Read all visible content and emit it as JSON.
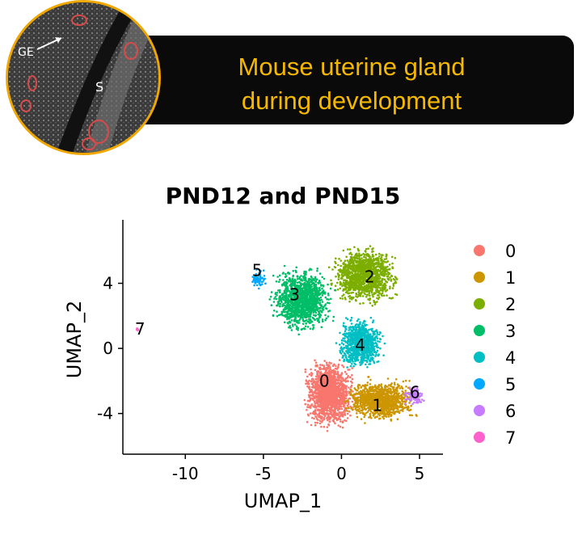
{
  "banner": {
    "title_line1": "Mouse uterine gland",
    "title_line2": "during development",
    "accent_color": "#f5b800"
  },
  "inset": {
    "label_ge": "GE",
    "label_s": "S",
    "border_color": "#f0a800"
  },
  "chart_data": {
    "type": "scatter",
    "title": "PND12 and PND15",
    "xlabel": "UMAP_1",
    "ylabel": "UMAP_2",
    "xlim": [
      -14,
      6.5
    ],
    "ylim": [
      -6.5,
      7.9
    ],
    "xticks": [
      -10,
      -5,
      0,
      5
    ],
    "yticks": [
      -4,
      0,
      4
    ],
    "grid": false,
    "legend_position": "right",
    "series": [
      {
        "name": "0",
        "color": "#f8766d",
        "cx": -0.8,
        "cy": -2.8,
        "rx": 1.8,
        "ry": 2.4,
        "count": 1500
      },
      {
        "name": "1",
        "color": "#cd9600",
        "cx": 2.5,
        "cy": -3.2,
        "rx": 2.6,
        "ry": 1.5,
        "count": 1100
      },
      {
        "name": "2",
        "color": "#7cae00",
        "cx": 1.5,
        "cy": 4.5,
        "rx": 2.5,
        "ry": 2.0,
        "count": 1300
      },
      {
        "name": "3",
        "color": "#00be67",
        "cx": -2.5,
        "cy": 3.0,
        "rx": 2.2,
        "ry": 2.3,
        "count": 1300
      },
      {
        "name": "4",
        "color": "#00bfc4",
        "cx": 1.2,
        "cy": 0.3,
        "rx": 1.7,
        "ry": 1.8,
        "count": 900
      },
      {
        "name": "5",
        "color": "#00a9ff",
        "cx": -5.3,
        "cy": 4.3,
        "rx": 0.6,
        "ry": 0.7,
        "count": 70
      },
      {
        "name": "6",
        "color": "#c77cff",
        "cx": 4.7,
        "cy": -2.9,
        "rx": 0.8,
        "ry": 0.7,
        "count": 120
      },
      {
        "name": "7",
        "color": "#ff61cc",
        "cx": -13.1,
        "cy": 1.2,
        "rx": 0.15,
        "ry": 0.15,
        "count": 6
      }
    ],
    "cluster_labels": [
      {
        "text": "0",
        "x": -1.1,
        "y": -2.0
      },
      {
        "text": "1",
        "x": 2.3,
        "y": -3.5
      },
      {
        "text": "2",
        "x": 1.8,
        "y": 4.4
      },
      {
        "text": "3",
        "x": -3.0,
        "y": 3.3
      },
      {
        "text": "4",
        "x": 1.2,
        "y": 0.2
      },
      {
        "text": "5",
        "x": -5.4,
        "y": 4.8
      },
      {
        "text": "6",
        "x": 4.7,
        "y": -2.7
      },
      {
        "text": "7",
        "x": -12.9,
        "y": 1.2
      }
    ]
  }
}
